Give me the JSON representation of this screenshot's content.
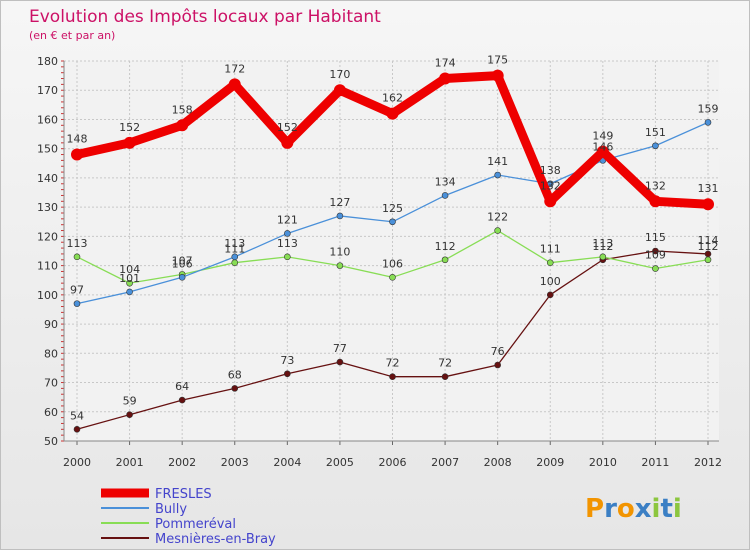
{
  "chart_data": {
    "type": "line",
    "title": "Evolution des Impôts locaux par Habitant",
    "subtitle": "(en € et par an)",
    "xlabel": "",
    "ylabel": "",
    "categories": [
      "2000",
      "2001",
      "2002",
      "2003",
      "2004",
      "2005",
      "2006",
      "2007",
      "2008",
      "2009",
      "2010",
      "2011",
      "2012"
    ],
    "ylim": [
      50,
      180
    ],
    "yticks": [
      50,
      60,
      70,
      80,
      90,
      100,
      110,
      120,
      130,
      140,
      150,
      160,
      170,
      180
    ],
    "grid": true,
    "legend_position": "bottom-left",
    "series": [
      {
        "name": "FRESLES",
        "color": "#ee0000",
        "values": [
          148,
          152,
          158,
          172,
          152,
          170,
          162,
          174,
          175,
          132,
          149,
          132,
          131
        ]
      },
      {
        "name": "Bully",
        "color": "#4a90d9",
        "values": [
          97,
          101,
          106,
          113,
          121,
          127,
          125,
          134,
          141,
          138,
          146,
          151,
          159
        ]
      },
      {
        "name": "Pommeréval",
        "color": "#88dd55",
        "values": [
          113,
          104,
          107,
          111,
          113,
          110,
          106,
          112,
          122,
          111,
          113,
          109,
          112
        ]
      },
      {
        "name": "Mesnières-en-Bray",
        "color": "#661111",
        "values": [
          54,
          59,
          64,
          68,
          73,
          77,
          72,
          72,
          76,
          100,
          112,
          115,
          114
        ]
      }
    ]
  },
  "brand": {
    "text": "Proxiti",
    "letters": [
      "P",
      "r",
      "o",
      "x",
      "i",
      "t",
      "i"
    ],
    "colors": [
      "#f29400",
      "#3b7fc4",
      "#f29400",
      "#3b7fc4",
      "#8cc63f",
      "#3b7fc4",
      "#8cc63f"
    ]
  }
}
